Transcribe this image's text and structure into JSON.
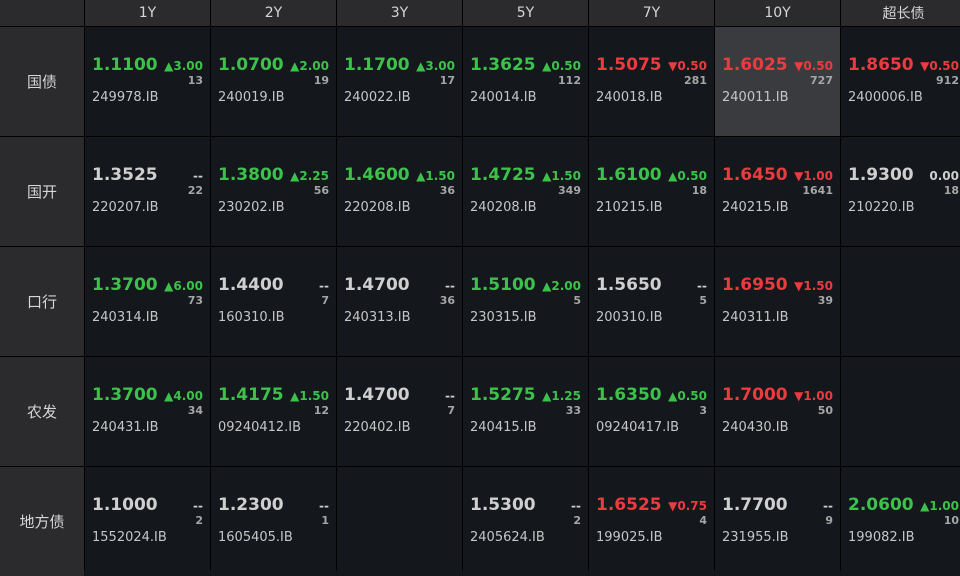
{
  "colors": {
    "up": "#3cc24a",
    "down": "#ec3b3f",
    "flat": "#cfcfcf",
    "highlight": "#3a3b3e"
  },
  "columns": [
    "1Y",
    "2Y",
    "3Y",
    "5Y",
    "7Y",
    "10Y",
    "超长债"
  ],
  "rows": [
    {
      "label": "国债",
      "cells": [
        {
          "yield": "1.1100",
          "change": "▲3.00",
          "dir": "up",
          "volume": "13",
          "code": "249978.IB"
        },
        {
          "yield": "1.0700",
          "change": "▲2.00",
          "dir": "up",
          "volume": "19",
          "code": "240019.IB"
        },
        {
          "yield": "1.1700",
          "change": "▲3.00",
          "dir": "up",
          "volume": "17",
          "code": "240022.IB"
        },
        {
          "yield": "1.3625",
          "change": "▲0.50",
          "dir": "up",
          "volume": "112",
          "code": "240014.IB"
        },
        {
          "yield": "1.5075",
          "change": "▼0.50",
          "dir": "down",
          "volume": "281",
          "code": "240018.IB"
        },
        {
          "yield": "1.6025",
          "change": "▼0.50",
          "dir": "down",
          "volume": "727",
          "code": "240011.IB",
          "highlight": true
        },
        {
          "yield": "1.8650",
          "change": "▼0.50",
          "dir": "down",
          "volume": "912",
          "code": "2400006.IB"
        }
      ]
    },
    {
      "label": "国开",
      "cells": [
        {
          "yield": "1.3525",
          "change": "--",
          "dir": "flat",
          "volume": "22",
          "code": "220207.IB"
        },
        {
          "yield": "1.3800",
          "change": "▲2.25",
          "dir": "up",
          "volume": "56",
          "code": "230202.IB"
        },
        {
          "yield": "1.4600",
          "change": "▲1.50",
          "dir": "up",
          "volume": "36",
          "code": "220208.IB"
        },
        {
          "yield": "1.4725",
          "change": "▲1.50",
          "dir": "up",
          "volume": "349",
          "code": "240208.IB"
        },
        {
          "yield": "1.6100",
          "change": "▲0.50",
          "dir": "up",
          "volume": "18",
          "code": "210215.IB"
        },
        {
          "yield": "1.6450",
          "change": "▼1.00",
          "dir": "down",
          "volume": "1641",
          "code": "240215.IB"
        },
        {
          "yield": "1.9300",
          "change": "0.00",
          "dir": "flat",
          "volume": "18",
          "code": "210220.IB"
        }
      ]
    },
    {
      "label": "口行",
      "cells": [
        {
          "yield": "1.3700",
          "change": "▲6.00",
          "dir": "up",
          "volume": "73",
          "code": "240314.IB"
        },
        {
          "yield": "1.4400",
          "change": "--",
          "dir": "flat",
          "volume": "7",
          "code": "160310.IB"
        },
        {
          "yield": "1.4700",
          "change": "--",
          "dir": "flat",
          "volume": "36",
          "code": "240313.IB"
        },
        {
          "yield": "1.5100",
          "change": "▲2.00",
          "dir": "up",
          "volume": "5",
          "code": "230315.IB"
        },
        {
          "yield": "1.5650",
          "change": "--",
          "dir": "flat",
          "volume": "5",
          "code": "200310.IB"
        },
        {
          "yield": "1.6950",
          "change": "▼1.50",
          "dir": "down",
          "volume": "39",
          "code": "240311.IB"
        },
        null
      ]
    },
    {
      "label": "农发",
      "cells": [
        {
          "yield": "1.3700",
          "change": "▲4.00",
          "dir": "up",
          "volume": "34",
          "code": "240431.IB"
        },
        {
          "yield": "1.4175",
          "change": "▲1.50",
          "dir": "up",
          "volume": "12",
          "code": "09240412.IB"
        },
        {
          "yield": "1.4700",
          "change": "--",
          "dir": "flat",
          "volume": "7",
          "code": "220402.IB"
        },
        {
          "yield": "1.5275",
          "change": "▲1.25",
          "dir": "up",
          "volume": "33",
          "code": "240415.IB"
        },
        {
          "yield": "1.6350",
          "change": "▲0.50",
          "dir": "up",
          "volume": "3",
          "code": "09240417.IB"
        },
        {
          "yield": "1.7000",
          "change": "▼1.00",
          "dir": "down",
          "volume": "50",
          "code": "240430.IB"
        },
        null
      ]
    },
    {
      "label": "地方债",
      "cells": [
        {
          "yield": "1.1000",
          "change": "--",
          "dir": "flat",
          "volume": "2",
          "code": "1552024.IB"
        },
        {
          "yield": "1.2300",
          "change": "--",
          "dir": "flat",
          "volume": "1",
          "code": "1605405.IB"
        },
        null,
        {
          "yield": "1.5300",
          "change": "--",
          "dir": "flat",
          "volume": "2",
          "code": "2405624.IB"
        },
        {
          "yield": "1.6525",
          "change": "▼0.75",
          "dir": "down",
          "volume": "4",
          "code": "199025.IB"
        },
        {
          "yield": "1.7700",
          "change": "--",
          "dir": "flat",
          "volume": "9",
          "code": "231955.IB"
        },
        {
          "yield": "2.0600",
          "change": "▲1.00",
          "dir": "up",
          "volume": "10",
          "code": "199082.IB"
        }
      ]
    }
  ]
}
